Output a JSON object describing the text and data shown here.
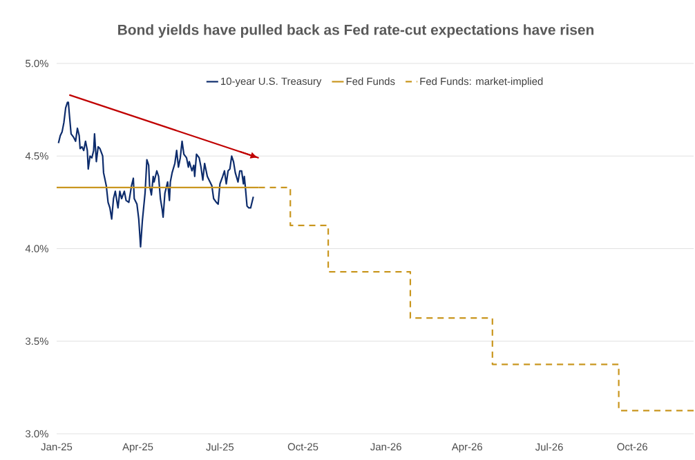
{
  "chart_data": {
    "type": "line",
    "title": "Bond yields have pulled back as Fed rate-cut expectations have risen",
    "xlim": [
      "2025-01-01",
      "2026-12-08"
    ],
    "xticks": [
      {
        "value": "2025-01-01",
        "label": "Jan-25"
      },
      {
        "value": "2025-04-01",
        "label": "Apr-25"
      },
      {
        "value": "2025-07-01",
        "label": "Jul-25"
      },
      {
        "value": "2025-10-01",
        "label": "Oct-25"
      },
      {
        "value": "2026-01-01",
        "label": "Jan-26"
      },
      {
        "value": "2026-04-01",
        "label": "Apr-26"
      },
      {
        "value": "2026-07-01",
        "label": "Jul-26"
      },
      {
        "value": "2026-10-01",
        "label": "Oct-26"
      }
    ],
    "ylim": [
      3,
      5
    ],
    "yticks": [
      {
        "value": 3,
        "label": "3.0%"
      },
      {
        "value": 3.5,
        "label": "3.5%"
      },
      {
        "value": 4,
        "label": "4.0%"
      },
      {
        "value": 4.5,
        "label": "4.5%"
      },
      {
        "value": 5,
        "label": "5.0%"
      }
    ],
    "grid": "y",
    "legend": "top",
    "series": [
      {
        "name": "10-year U.S. Treasury",
        "color": "#0d2c6c",
        "x": [
          "2025-01-03",
          "2025-01-05",
          "2025-01-07",
          "2025-01-09",
          "2025-01-11",
          "2025-01-13",
          "2025-01-14",
          "2025-01-15",
          "2025-01-17",
          "2025-01-20",
          "2025-01-22",
          "2025-01-24",
          "2025-01-26",
          "2025-01-27",
          "2025-01-29",
          "2025-01-31",
          "2025-02-02",
          "2025-02-04",
          "2025-02-05",
          "2025-02-07",
          "2025-02-09",
          "2025-02-11",
          "2025-02-12",
          "2025-02-14",
          "2025-02-16",
          "2025-02-18",
          "2025-02-21",
          "2025-02-22",
          "2025-02-25",
          "2025-02-27",
          "2025-03-01",
          "2025-03-03",
          "2025-03-05",
          "2025-03-07",
          "2025-03-10",
          "2025-03-12",
          "2025-03-14",
          "2025-03-17",
          "2025-03-19",
          "2025-03-22",
          "2025-03-25",
          "2025-03-27",
          "2025-03-28",
          "2025-03-31",
          "2025-04-02",
          "2025-04-04",
          "2025-04-06",
          "2025-04-09",
          "2025-04-11",
          "2025-04-13",
          "2025-04-14",
          "2025-04-16",
          "2025-04-18",
          "2025-04-19",
          "2025-04-22",
          "2025-04-24",
          "2025-04-26",
          "2025-04-28",
          "2025-04-29",
          "2025-05-01",
          "2025-05-04",
          "2025-05-06",
          "2025-05-07",
          "2025-05-09",
          "2025-05-12",
          "2025-05-14",
          "2025-05-16",
          "2025-05-18",
          "2025-05-20",
          "2025-05-22",
          "2025-05-25",
          "2025-05-27",
          "2025-05-28",
          "2025-05-31",
          "2025-06-02",
          "2025-06-03",
          "2025-06-05",
          "2025-06-08",
          "2025-06-10",
          "2025-06-12",
          "2025-06-14",
          "2025-06-17",
          "2025-06-19",
          "2025-06-22",
          "2025-06-24",
          "2025-06-27",
          "2025-06-29",
          "2025-07-01",
          "2025-07-04",
          "2025-07-06",
          "2025-07-08",
          "2025-07-10",
          "2025-07-12",
          "2025-07-14",
          "2025-07-16",
          "2025-07-18",
          "2025-07-21",
          "2025-07-23",
          "2025-07-25",
          "2025-07-27",
          "2025-07-28",
          "2025-07-29",
          "2025-07-31",
          "2025-08-02",
          "2025-08-04",
          "2025-08-07"
        ],
        "values": [
          4.57,
          4.61,
          4.63,
          4.68,
          4.76,
          4.79,
          4.79,
          4.73,
          4.62,
          4.6,
          4.58,
          4.65,
          4.61,
          4.54,
          4.55,
          4.53,
          4.58,
          4.53,
          4.43,
          4.5,
          4.49,
          4.53,
          4.62,
          4.47,
          4.55,
          4.54,
          4.5,
          4.41,
          4.34,
          4.25,
          4.22,
          4.16,
          4.27,
          4.31,
          4.22,
          4.31,
          4.27,
          4.31,
          4.26,
          4.25,
          4.34,
          4.38,
          4.27,
          4.24,
          4.16,
          4.01,
          4.15,
          4.3,
          4.48,
          4.45,
          4.34,
          4.29,
          4.39,
          4.36,
          4.42,
          4.39,
          4.27,
          4.21,
          4.17,
          4.3,
          4.36,
          4.26,
          4.36,
          4.41,
          4.46,
          4.53,
          4.44,
          4.49,
          4.58,
          4.51,
          4.49,
          4.44,
          4.47,
          4.42,
          4.45,
          4.39,
          4.51,
          4.49,
          4.44,
          4.37,
          4.46,
          4.39,
          4.37,
          4.34,
          4.27,
          4.25,
          4.24,
          4.35,
          4.39,
          4.42,
          4.35,
          4.42,
          4.43,
          4.5,
          4.47,
          4.41,
          4.36,
          4.42,
          4.42,
          4.35,
          4.39,
          4.34,
          4.23,
          4.22,
          4.22,
          4.28
        ]
      },
      {
        "name": "Fed Funds",
        "color": "#c9961e",
        "x": [
          "2025-01-01",
          "2025-08-13"
        ],
        "values": [
          4.33,
          4.33
        ]
      },
      {
        "name": "Fed Funds: market-implied",
        "type": "step",
        "color": "#c9961e",
        "line_style": "dashed",
        "x": [
          "2025-08-13",
          "2025-09-17",
          "2025-10-29",
          "2026-01-28",
          "2026-04-29",
          "2026-09-16",
          "2026-12-08"
        ],
        "values": [
          4.33,
          4.125,
          3.875,
          3.625,
          3.375,
          3.125,
          3.125
        ]
      },
      {
        "color": "#c00000",
        "x": [
          "2025-01-15",
          "2025-08-13"
        ],
        "values": [
          4.83,
          4.49
        ]
      }
    ]
  }
}
